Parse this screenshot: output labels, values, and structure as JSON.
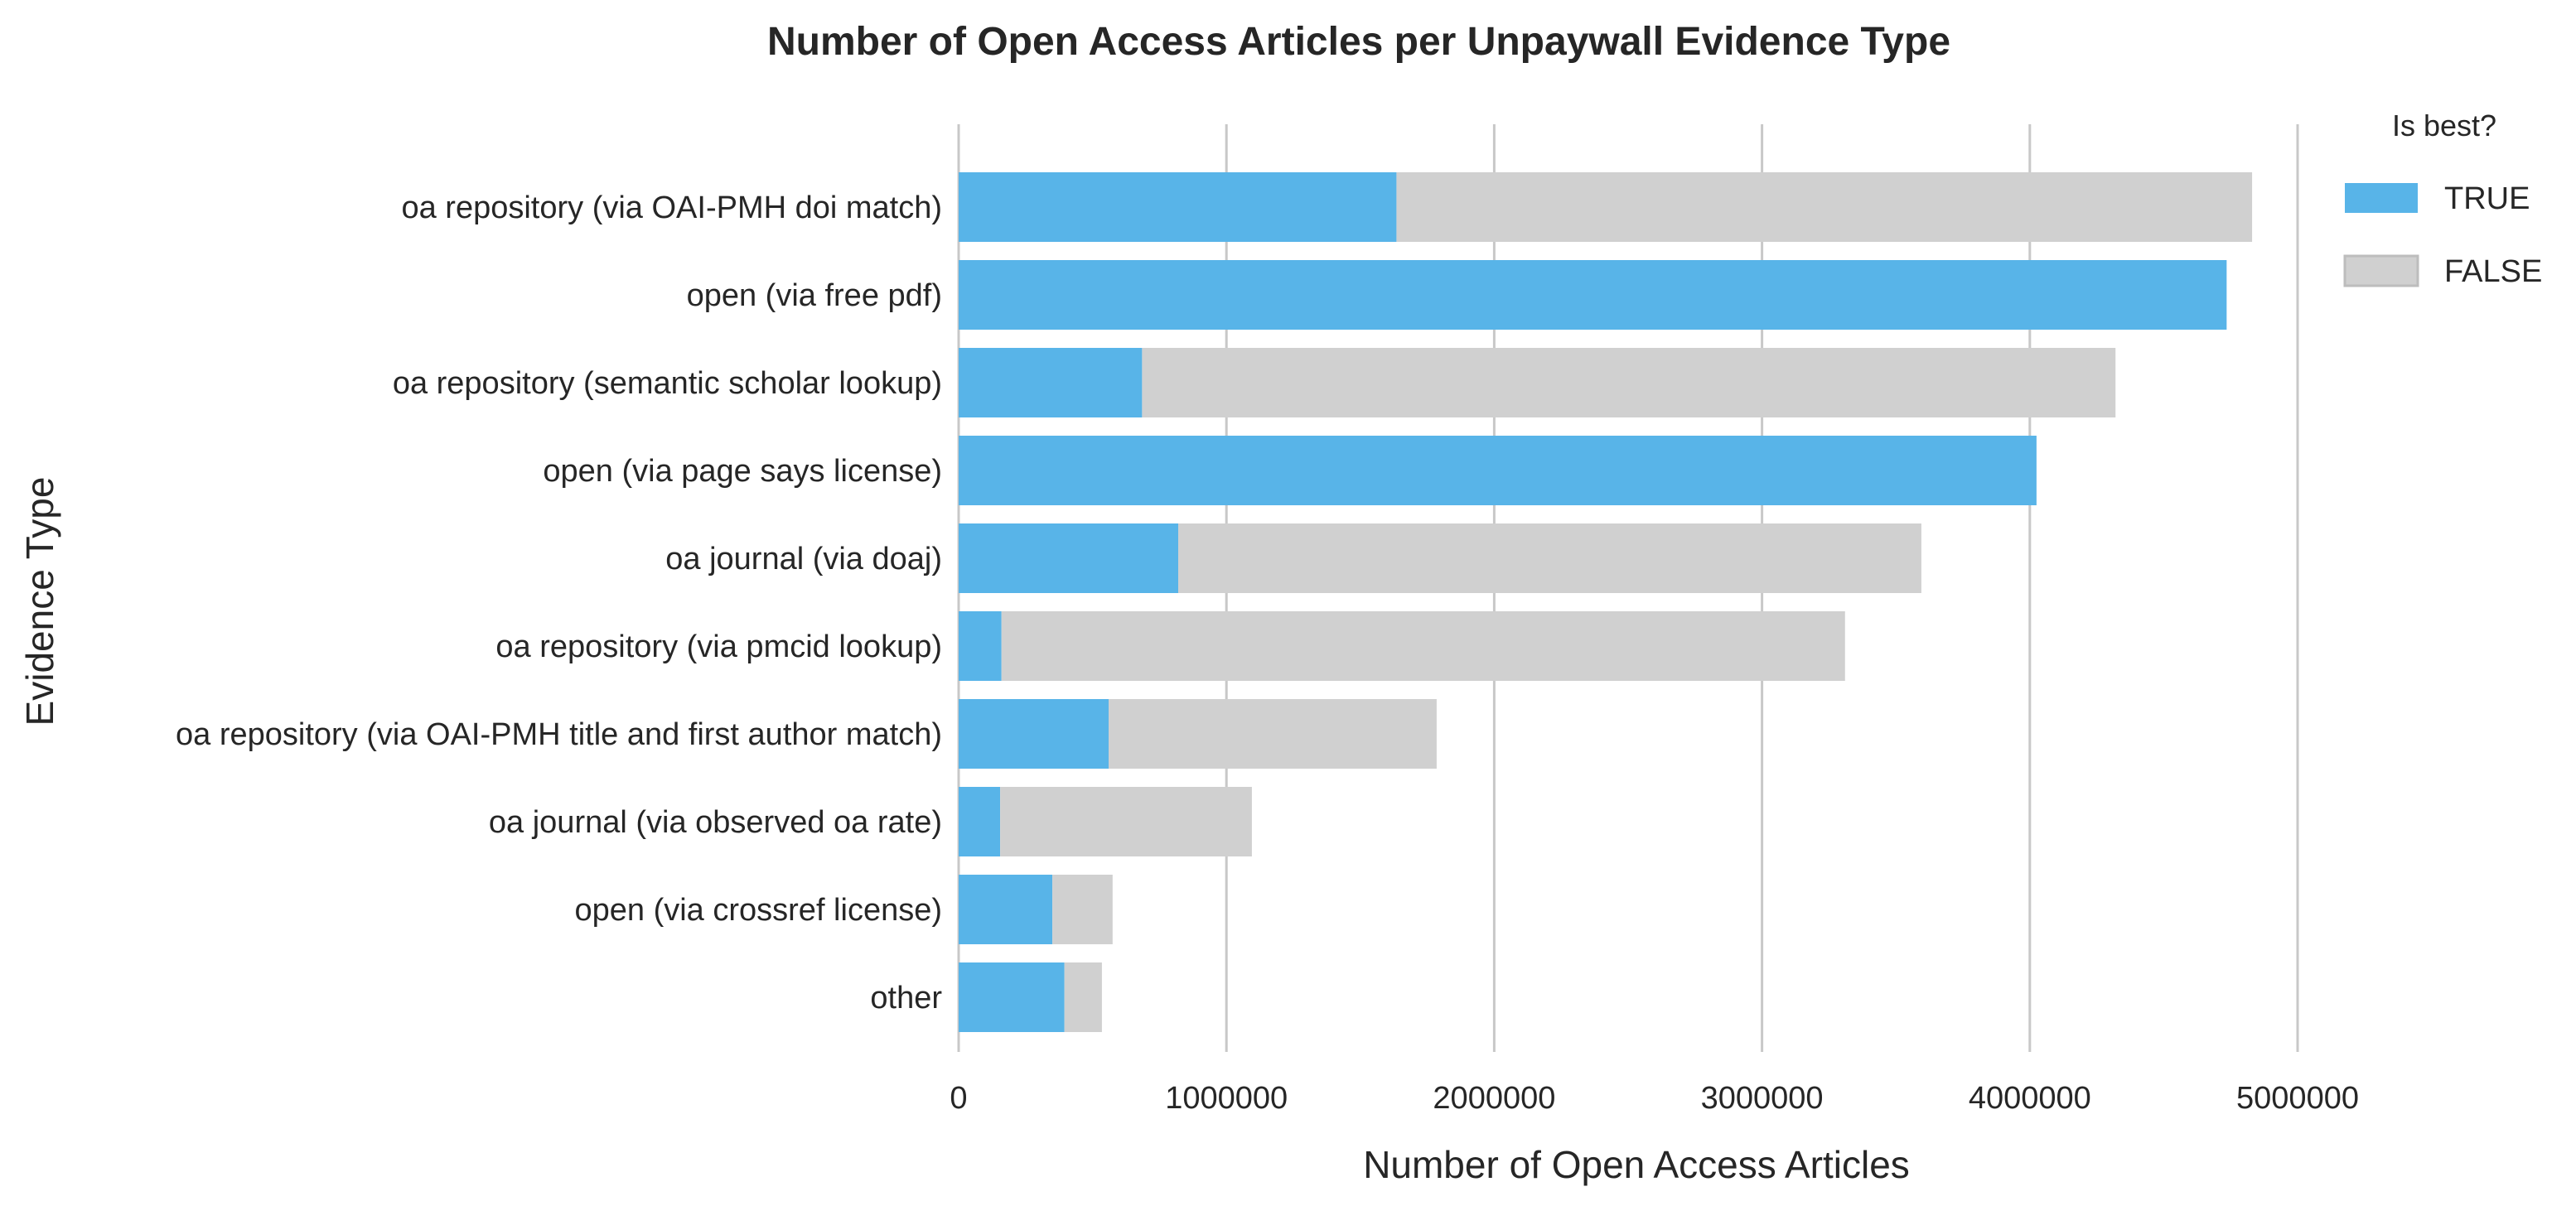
{
  "chart_data": {
    "type": "bar",
    "orientation": "horizontal",
    "stacked": true,
    "title": "Number of Open Access Articles per Unpaywall Evidence Type",
    "xlabel": "Number of Open Access Articles",
    "ylabel": "Evidence Type",
    "xlim": [
      0,
      5000000
    ],
    "xticks": [
      "0",
      "1000000",
      "2000000",
      "3000000",
      "4000000",
      "5000000"
    ],
    "tick_values": [
      0,
      1000000,
      2000000,
      3000000,
      4000000,
      5000000
    ],
    "grid": "vertical",
    "categories": [
      "oa repository (via OAI-PMH doi match)",
      "open (via free pdf)",
      "oa repository (semantic scholar lookup)",
      "open (via page says license)",
      "oa journal (via doaj)",
      "oa repository (via pmcid lookup)",
      "oa repository (via OAI-PMH title and first author match)",
      "oa journal (via observed oa rate)",
      "open (via crossref license)",
      "other"
    ],
    "series": [
      {
        "name": "TRUE",
        "color": "#58b4e8",
        "values": [
          1635000,
          4735000,
          685000,
          4025000,
          820000,
          160000,
          560000,
          155000,
          350000,
          395000
        ]
      },
      {
        "name": "FALSE",
        "color": "#d0d0d0",
        "values": [
          3195000,
          0,
          3635000,
          0,
          2775000,
          3150000,
          1225000,
          940000,
          225000,
          140000
        ]
      }
    ],
    "legend": {
      "title": "Is best?",
      "placement": "top-right",
      "labels": [
        "TRUE",
        "FALSE"
      ]
    }
  }
}
